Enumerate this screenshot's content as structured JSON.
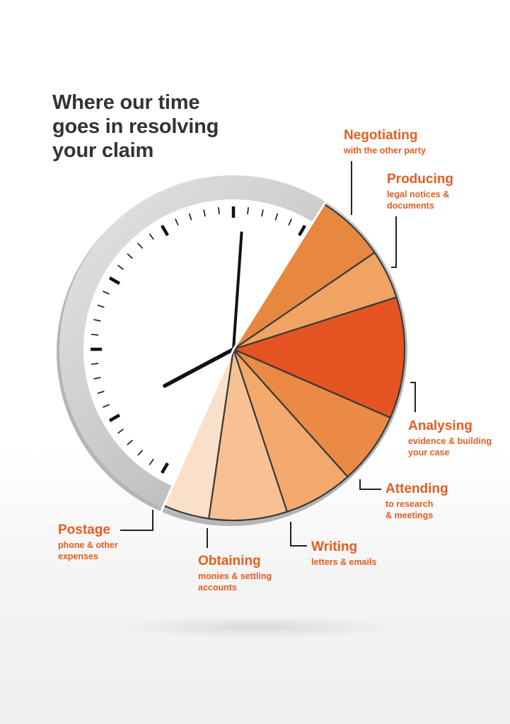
{
  "title": "Where our time\ngoes in resolving\nyour claim",
  "colors": {
    "label": "#e65c1f",
    "title": "#333333",
    "clock_rim": "#c8c8c8",
    "clock_face": "#ffffff",
    "slice_border": "#3a3a3a"
  },
  "chart_data": {
    "type": "pie",
    "title": "Where our time goes in resolving your claim",
    "units": "share of clock face (degrees)",
    "slices": [
      {
        "name": "Negotiating",
        "detail": "with the other party",
        "value": 24,
        "color": "#e8873f"
      },
      {
        "name": "Producing",
        "detail": "legal notices & documents",
        "value": 17,
        "color": "#f0a362"
      },
      {
        "name": "Analysing",
        "detail": "evidence & building your case",
        "value": 42,
        "color": "#e45321"
      },
      {
        "name": "Attending",
        "detail": "to research & meetings",
        "value": 25,
        "color": "#eb8a44"
      },
      {
        "name": "Writing",
        "detail": "letters & emails",
        "value": 24,
        "color": "#f3a96b"
      },
      {
        "name": "Obtaining",
        "detail": "monies & settling accounts",
        "value": 27,
        "color": "#f7c194"
      },
      {
        "name": "Postage",
        "detail": "phone & other expenses",
        "value": 16,
        "color": "#fbe0c9"
      }
    ]
  },
  "labels": {
    "negotiating": {
      "head": "Negotiating",
      "sub": "with the other party"
    },
    "producing": {
      "head": "Producing",
      "sub": "legal notices &\ndocuments"
    },
    "analysing": {
      "head": "Analysing",
      "sub": "evidence & building\nyour case"
    },
    "attending": {
      "head": "Attending",
      "sub": "to research\n& meetings"
    },
    "writing": {
      "head": "Writing",
      "sub": "letters & emails"
    },
    "obtaining": {
      "head": "Obtaining",
      "sub": "monies & settling\naccounts"
    },
    "postage": {
      "head": "Postage",
      "sub": "phone & other\nexpenses"
    }
  }
}
